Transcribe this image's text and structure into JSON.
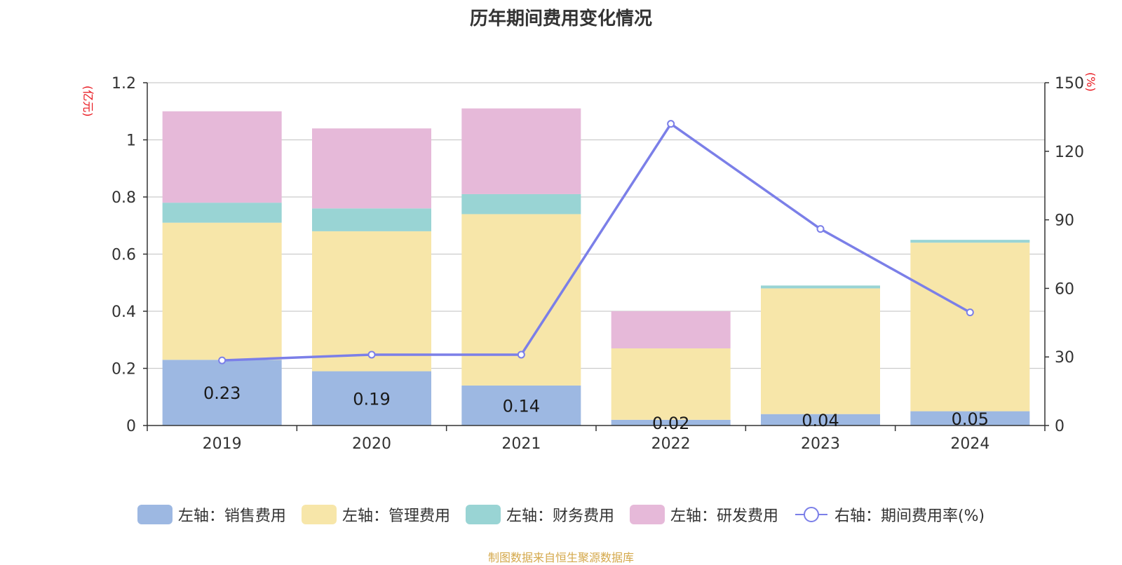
{
  "title": "历年期间费用变化情况",
  "source": "制图数据来自恒生聚源数据库",
  "chart_data": {
    "type": "bar",
    "title": "历年期间费用变化情况",
    "stacked": true,
    "categories": [
      "2019",
      "2020",
      "2021",
      "2022",
      "2023",
      "2024"
    ],
    "y_left": {
      "unit": "(亿元)",
      "ylim": [
        0,
        1.2
      ],
      "ticks": [
        "0",
        "0.2",
        "0.4",
        "0.6",
        "0.8",
        "1",
        "1.2"
      ]
    },
    "y_right": {
      "unit": "(%)",
      "ylim": [
        0,
        150
      ],
      "ticks": [
        "0",
        "30",
        "60",
        "90",
        "120",
        "150"
      ]
    },
    "series": [
      {
        "name": "左轴：销售费用",
        "type": "bar",
        "axis": "left",
        "color": "#9db8e2",
        "values": [
          0.23,
          0.19,
          0.14,
          0.02,
          0.04,
          0.05
        ],
        "labels": [
          "0.23",
          "0.19",
          "0.14",
          "0.02",
          "0.04",
          "0.05"
        ]
      },
      {
        "name": "左轴：管理费用",
        "type": "bar",
        "axis": "left",
        "color": "#f7e6a9",
        "values": [
          0.48,
          0.49,
          0.6,
          0.25,
          0.44,
          0.59
        ]
      },
      {
        "name": "左轴：财务费用",
        "type": "bar",
        "axis": "left",
        "color": "#99d4d4",
        "values": [
          0.07,
          0.08,
          0.07,
          0.0,
          0.01,
          0.01
        ]
      },
      {
        "name": "左轴：研发费用",
        "type": "bar",
        "axis": "left",
        "color": "#e6b9d9",
        "values": [
          0.32,
          0.28,
          0.3,
          0.13,
          0.0,
          0.0
        ]
      },
      {
        "name": "右轴：期间费用率(%)",
        "type": "line",
        "axis": "right",
        "color": "#7b7fe8",
        "values": [
          28.5,
          31,
          31,
          132,
          86,
          49.5
        ]
      }
    ],
    "grid": true,
    "legend_position": "bottom"
  }
}
